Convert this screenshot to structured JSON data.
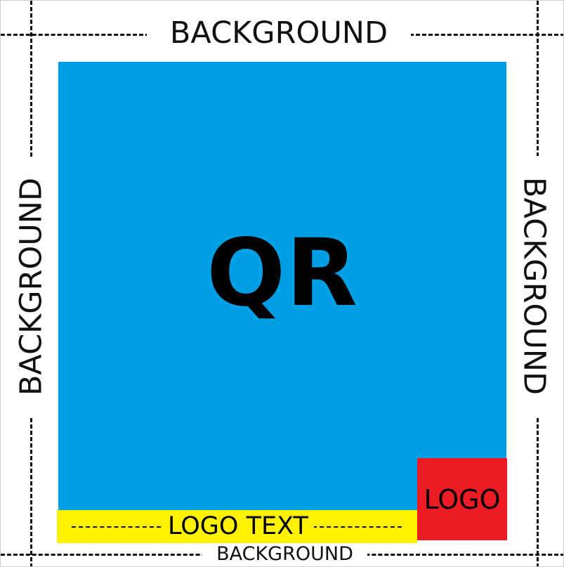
{
  "diagram": {
    "background_top": "BACKGROUND",
    "background_left": "BACKGROUND",
    "background_right": "BACKGROUND",
    "background_bottom": "BACKGROUND",
    "qr_label": "QR",
    "logo_label": "LOGO",
    "logo_text_label": "LOGO TEXT"
  },
  "colors": {
    "qr_area": "#00a0e6",
    "logo_area": "#ed1c24",
    "logo_text_area": "#fff200",
    "background": "#ffffff",
    "guides": "#111111"
  }
}
